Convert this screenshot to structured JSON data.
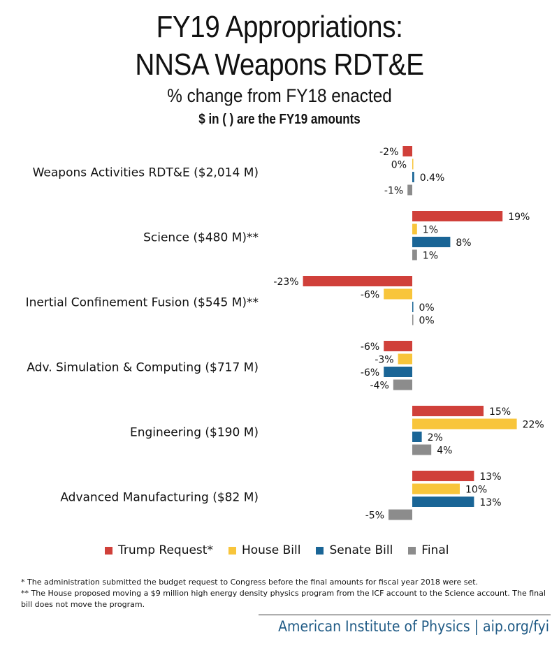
{
  "header": {
    "title_line1": "FY19 Appropriations:",
    "title_line2": "NNSA Weapons RDT&E",
    "subtitle": "% change from FY18 enacted",
    "note": "$ in ( ) are the FY19 amounts"
  },
  "chart_data": {
    "type": "bar",
    "orientation": "horizontal",
    "unit": "%",
    "categories": [
      "Weapons Activities RDT&E ($2,014 M)",
      "Science ($480 M)**",
      "Inertial Confinement Fusion ($545 M)**",
      "Adv. Simulation & Computing ($717 M)",
      "Engineering ($190 M)",
      "Advanced Manufacturing ($82 M)"
    ],
    "series": [
      {
        "name": "Trump Request*",
        "color": "#d0403a",
        "values": [
          -2,
          19,
          -23,
          -6,
          15,
          13
        ],
        "labels": [
          "-2%",
          "19%",
          "-23%",
          "-6%",
          "15%",
          "13%"
        ]
      },
      {
        "name": "House Bill",
        "color": "#f8c53b",
        "values": [
          0,
          1,
          -6,
          -3,
          22,
          10
        ],
        "labels": [
          "0%",
          "1%",
          "-6%",
          "-3%",
          "22%",
          "10%"
        ]
      },
      {
        "name": "Senate Bill",
        "color": "#1a6596",
        "values": [
          0.4,
          8,
          0,
          -6,
          2,
          13
        ],
        "labels": [
          "0.4%",
          "8%",
          "0%",
          "-6%",
          "2%",
          "13%"
        ]
      },
      {
        "name": "Final",
        "color": "#8c8c8c",
        "values": [
          -1,
          1,
          0,
          -4,
          4,
          -5
        ],
        "labels": [
          "-1%",
          "1%",
          "0%",
          "-4%",
          "4%",
          "-5%"
        ]
      }
    ],
    "xlim": [
      -23,
      22
    ]
  },
  "footnotes": {
    "note1": "* The administration submitted the budget request to Congress before the final amounts for fiscal year 2018 were set.",
    "note2": "** The House proposed moving a $9 million high energy density physics program from the ICF account to the Science account. The final bill does not move the program."
  },
  "footer": {
    "text": "American Institute of Physics | aip.org/fyi"
  }
}
